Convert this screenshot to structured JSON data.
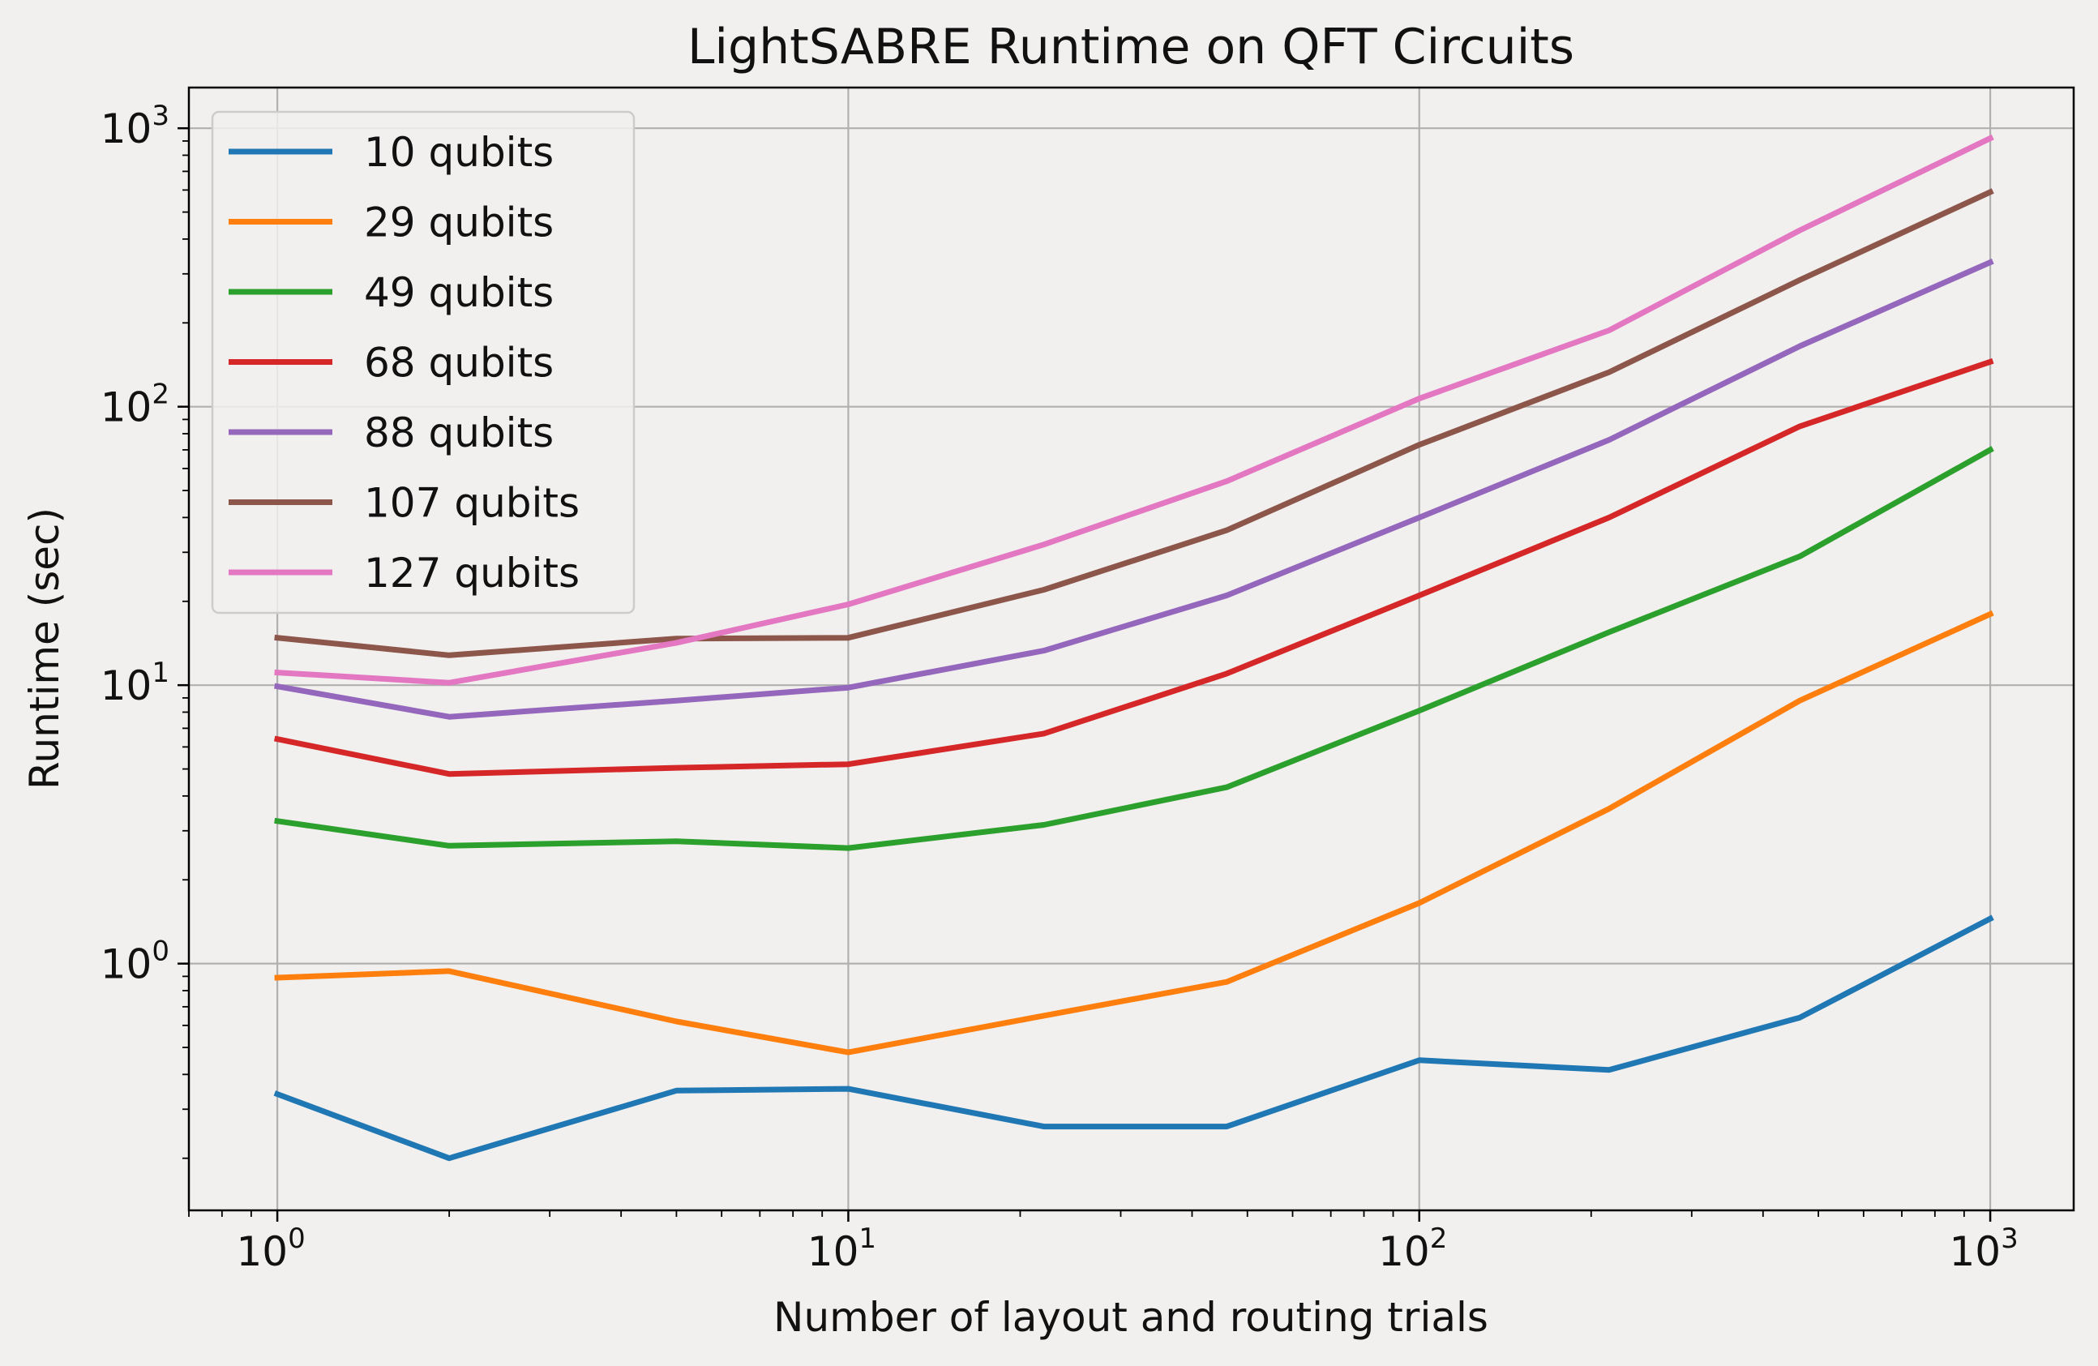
{
  "chart_data": {
    "type": "line",
    "title": "LightSABRE Runtime on QFT Circuits",
    "xlabel": "Number of layout and routing trials",
    "ylabel": "Runtime (sec)",
    "xscale": "log",
    "yscale": "log",
    "xlim": [
      0.7,
      1400
    ],
    "ylim": [
      0.13,
      1400
    ],
    "grid": true,
    "legend_position": "upper-left",
    "x": [
      1,
      2,
      5,
      10,
      22,
      46,
      100,
      215,
      464,
      1000
    ],
    "x_ticks": [
      {
        "value": 1,
        "base": "10",
        "exp": "0"
      },
      {
        "value": 10,
        "base": "10",
        "exp": "1"
      },
      {
        "value": 100,
        "base": "10",
        "exp": "2"
      },
      {
        "value": 1000,
        "base": "10",
        "exp": "3"
      }
    ],
    "y_ticks": [
      {
        "value": 1,
        "base": "10",
        "exp": "0"
      },
      {
        "value": 10,
        "base": "10",
        "exp": "1"
      },
      {
        "value": 100,
        "base": "10",
        "exp": "2"
      },
      {
        "value": 1000,
        "base": "10",
        "exp": "3"
      }
    ],
    "series": [
      {
        "name": "10 qubits",
        "color": "#1f77b4",
        "values": [
          0.34,
          0.2,
          0.35,
          0.355,
          0.26,
          0.26,
          0.45,
          0.415,
          0.64,
          1.45
        ]
      },
      {
        "name": "29 qubits",
        "color": "#ff7f0e",
        "values": [
          0.89,
          0.94,
          0.62,
          0.48,
          0.65,
          0.86,
          1.65,
          3.6,
          8.8,
          18.0
        ]
      },
      {
        "name": "49 qubits",
        "color": "#2ca02c",
        "values": [
          3.25,
          2.65,
          2.75,
          2.6,
          3.15,
          4.3,
          8.1,
          15.5,
          29,
          70
        ]
      },
      {
        "name": "68 qubits",
        "color": "#d62728",
        "values": [
          6.4,
          4.8,
          5.05,
          5.2,
          6.7,
          11.0,
          21,
          40,
          85,
          145
        ]
      },
      {
        "name": "88 qubits",
        "color": "#9467bd",
        "values": [
          9.9,
          7.7,
          8.8,
          9.8,
          13.3,
          21,
          40,
          76,
          165,
          330
        ]
      },
      {
        "name": "107 qubits",
        "color": "#8c564b",
        "values": [
          14.8,
          12.8,
          14.7,
          14.8,
          22,
          36,
          73,
          133,
          285,
          590
        ]
      },
      {
        "name": "127 qubits",
        "color": "#e377c2",
        "values": [
          11.1,
          10.2,
          14.2,
          19.5,
          32,
          54,
          107,
          188,
          430,
          920
        ]
      }
    ]
  }
}
